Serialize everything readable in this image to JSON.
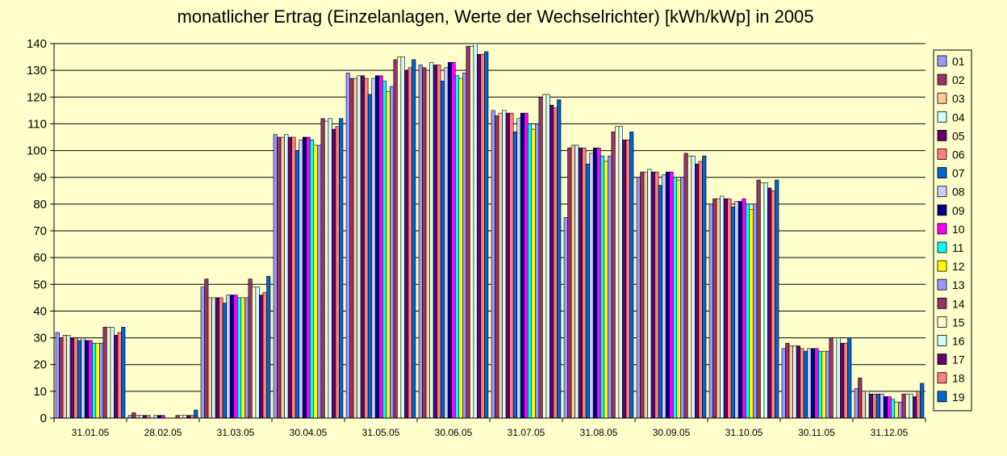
{
  "chart_data": {
    "type": "bar",
    "title": "monatlicher Ertrag (Einzelanlagen, Werte der Wechselrichter) [kWh/kWp] in 2005",
    "xlabel": "",
    "ylabel": "",
    "ylim": [
      0,
      140
    ],
    "ytick_step": 10,
    "grid": "horizontal",
    "legend_position": "right",
    "categories": [
      "31.01.05",
      "28.02.05",
      "31.03.05",
      "30.04.05",
      "31.05.05",
      "30.06.05",
      "31.07.05",
      "31.08.05",
      "30.09.05",
      "31.10.05",
      "30.11.05",
      "31.12.05"
    ],
    "series": [
      {
        "name": "01",
        "color": "#9999ff",
        "values": [
          32,
          1,
          49,
          106,
          129,
          132,
          115,
          75,
          90,
          80,
          26,
          11
        ]
      },
      {
        "name": "02",
        "color": "#993366",
        "values": [
          30,
          2,
          52,
          105,
          127,
          131,
          113,
          101,
          92,
          82,
          28,
          15
        ]
      },
      {
        "name": "03",
        "color": "#ffcc99",
        "values": [
          31,
          1,
          45,
          105,
          127,
          130,
          114,
          102,
          92,
          82,
          27,
          10
        ]
      },
      {
        "name": "04",
        "color": "#ccffff",
        "values": [
          31,
          1,
          45,
          106,
          128,
          133,
          115,
          102,
          93,
          83,
          27,
          10
        ]
      },
      {
        "name": "05",
        "color": "#660066",
        "values": [
          30,
          1,
          45,
          105,
          128,
          132,
          114,
          101,
          92,
          82,
          27,
          9
        ]
      },
      {
        "name": "06",
        "color": "#ff8080",
        "values": [
          30,
          1,
          45,
          105,
          127,
          132,
          114,
          101,
          92,
          82,
          26,
          9
        ]
      },
      {
        "name": "07",
        "color": "#0066cc",
        "values": [
          29,
          0,
          43,
          100,
          121,
          126,
          107,
          95,
          87,
          79,
          25,
          9
        ]
      },
      {
        "name": "08",
        "color": "#ccccff",
        "values": [
          30,
          1,
          46,
          104,
          127,
          131,
          112,
          99,
          91,
          81,
          26,
          9
        ]
      },
      {
        "name": "09",
        "color": "#000080",
        "values": [
          29,
          1,
          46,
          105,
          128,
          133,
          114,
          101,
          92,
          81,
          26,
          8
        ]
      },
      {
        "name": "10",
        "color": "#ff00ff",
        "values": [
          29,
          1,
          46,
          105,
          128,
          133,
          114,
          101,
          92,
          82,
          26,
          8
        ]
      },
      {
        "name": "11",
        "color": "#00ffff",
        "values": [
          28,
          0,
          45,
          104,
          126,
          128,
          110,
          98,
          90,
          80,
          25,
          7
        ]
      },
      {
        "name": "12",
        "color": "#ffff00",
        "values": [
          28,
          0,
          45,
          102,
          122,
          127,
          108,
          96,
          89,
          78,
          25,
          6
        ]
      },
      {
        "name": "13",
        "color": "#9999ff",
        "values": [
          28,
          0,
          45,
          102,
          124,
          129,
          110,
          98,
          90,
          80,
          25,
          6
        ]
      },
      {
        "name": "14",
        "color": "#993366",
        "values": [
          34,
          1,
          52,
          112,
          134,
          139,
          120,
          107,
          99,
          89,
          30,
          9
        ]
      },
      {
        "name": "15",
        "color": "#ffffcc",
        "values": [
          34,
          1,
          49,
          111,
          135,
          139,
          121,
          109,
          98,
          88,
          30,
          9
        ]
      },
      {
        "name": "16",
        "color": "#ccffff",
        "values": [
          34,
          1,
          49,
          112,
          135,
          140,
          121,
          109,
          98,
          88,
          30,
          9
        ]
      },
      {
        "name": "17",
        "color": "#660066",
        "values": [
          31,
          1,
          46,
          108,
          130,
          136,
          117,
          104,
          95,
          86,
          28,
          8
        ]
      },
      {
        "name": "18",
        "color": "#ff8080",
        "values": [
          32,
          1,
          47,
          109,
          131,
          136,
          116,
          104,
          96,
          85,
          28,
          10
        ]
      },
      {
        "name": "19",
        "color": "#0066cc",
        "values": [
          34,
          3,
          53,
          112,
          134,
          137,
          119,
          107,
          98,
          89,
          30,
          13
        ]
      }
    ]
  }
}
